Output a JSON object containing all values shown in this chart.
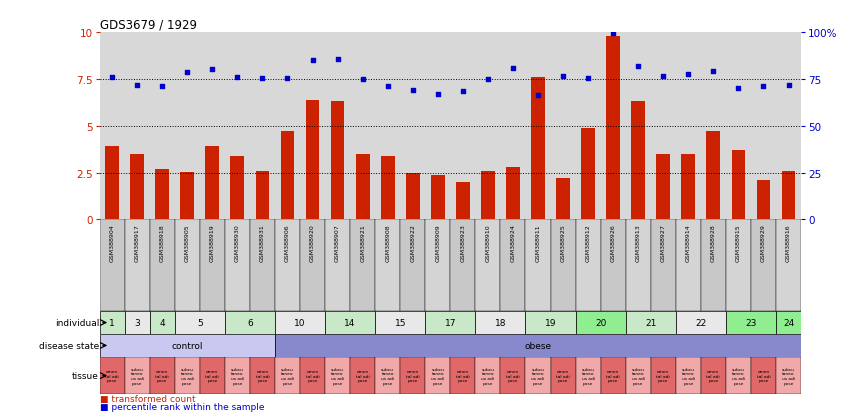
{
  "title": "GDS3679 / 1929",
  "samples": [
    "GSM388904",
    "GSM388917",
    "GSM388918",
    "GSM388905",
    "GSM388919",
    "GSM388930",
    "GSM388931",
    "GSM388906",
    "GSM388920",
    "GSM388907",
    "GSM388921",
    "GSM388908",
    "GSM388922",
    "GSM388909",
    "GSM388923",
    "GSM388910",
    "GSM388924",
    "GSM388911",
    "GSM388925",
    "GSM388912",
    "GSM388926",
    "GSM388913",
    "GSM388927",
    "GSM388914",
    "GSM388928",
    "GSM388915",
    "GSM388929",
    "GSM388916"
  ],
  "bar_values": [
    3.9,
    3.5,
    2.7,
    2.55,
    3.9,
    3.4,
    2.6,
    4.7,
    6.4,
    6.3,
    3.5,
    3.4,
    2.5,
    2.4,
    2.0,
    2.6,
    2.8,
    7.6,
    2.2,
    4.9,
    9.8,
    6.3,
    3.5,
    3.5,
    4.7,
    3.7,
    2.1,
    2.6
  ],
  "scatter_values": [
    7.6,
    7.2,
    7.1,
    7.85,
    8.05,
    7.6,
    7.55,
    7.55,
    8.5,
    8.55,
    7.5,
    7.1,
    6.9,
    6.7,
    6.85,
    7.5,
    8.1,
    6.65,
    7.65,
    7.55,
    9.95,
    8.2,
    7.65,
    7.75,
    7.9,
    7.0,
    7.1,
    7.2
  ],
  "individuals": [
    {
      "label": "1",
      "start": 0,
      "end": 1,
      "color": "#c8e8c8"
    },
    {
      "label": "3",
      "start": 1,
      "end": 2,
      "color": "#e8e8e8"
    },
    {
      "label": "4",
      "start": 2,
      "end": 3,
      "color": "#c8e8c8"
    },
    {
      "label": "5",
      "start": 3,
      "end": 5,
      "color": "#e8e8e8"
    },
    {
      "label": "6",
      "start": 5,
      "end": 7,
      "color": "#c8e8c8"
    },
    {
      "label": "10",
      "start": 7,
      "end": 9,
      "color": "#e8e8e8"
    },
    {
      "label": "14",
      "start": 9,
      "end": 11,
      "color": "#c8e8c8"
    },
    {
      "label": "15",
      "start": 11,
      "end": 13,
      "color": "#e8e8e8"
    },
    {
      "label": "17",
      "start": 13,
      "end": 15,
      "color": "#c8e8c8"
    },
    {
      "label": "18",
      "start": 15,
      "end": 17,
      "color": "#e8e8e8"
    },
    {
      "label": "19",
      "start": 17,
      "end": 19,
      "color": "#c8e8c8"
    },
    {
      "label": "20",
      "start": 19,
      "end": 21,
      "color": "#90ee90"
    },
    {
      "label": "21",
      "start": 21,
      "end": 23,
      "color": "#c8e8c8"
    },
    {
      "label": "22",
      "start": 23,
      "end": 25,
      "color": "#e8e8e8"
    },
    {
      "label": "23",
      "start": 25,
      "end": 27,
      "color": "#90ee90"
    },
    {
      "label": "24",
      "start": 27,
      "end": 28,
      "color": "#90ee90"
    }
  ],
  "disease_state": [
    {
      "label": "control",
      "start": 0,
      "end": 7,
      "color": "#c8c8f0"
    },
    {
      "label": "obese",
      "start": 7,
      "end": 28,
      "color": "#8888cc"
    }
  ],
  "bar_color": "#cc2200",
  "scatter_color": "#0000cc",
  "left_yticks": [
    0,
    2.5,
    5.0,
    7.5,
    10.0
  ],
  "right_yticks": [
    0,
    25,
    50,
    75,
    100
  ],
  "plot_bg_color": "#d8d8d8",
  "xtick_bg_color": "#c0c0c0",
  "tissue_color_odd": "#e06868",
  "tissue_color_even": "#f0a8a8"
}
